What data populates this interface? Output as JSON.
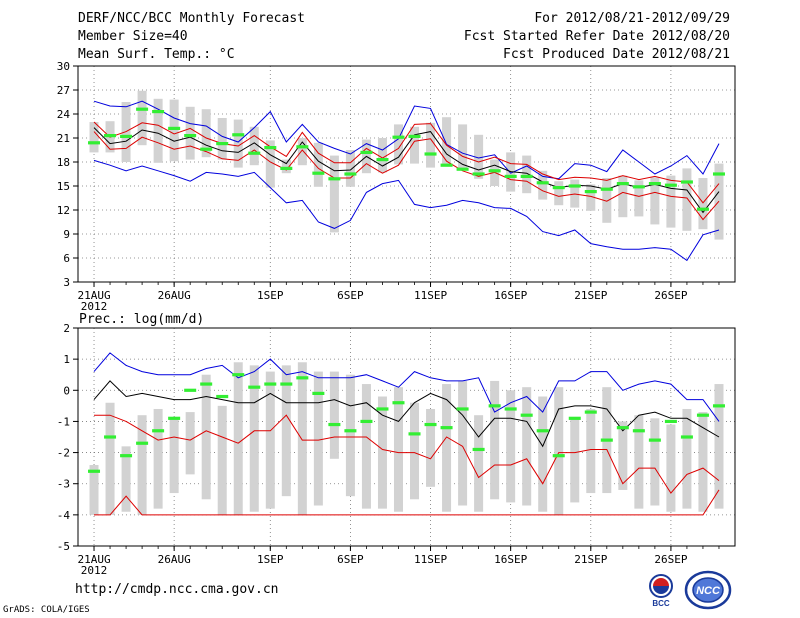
{
  "header": {
    "title": "DERF/NCC/BCC Monthly Forecast",
    "member_size": "Member Size=40",
    "variable": "Mean Surf. Temp.: °C",
    "forecast_period": "For 2012/08/21-2012/09/29",
    "fcst_started": "Fcst Started Refer Date 2012/08/20",
    "fcst_produced": "Fcst Produced Date 2012/08/21"
  },
  "footer": {
    "url": "http://cmdp.ncc.cma.gov.cn",
    "grads": "GrADS: COLA/IGES",
    "logo_left_text": "BCC",
    "logo_right_text": "NCC"
  },
  "colors": {
    "upper_line": "#0000dd",
    "lower_line": "#dd0000",
    "ensemble_mean": "#000000",
    "box": "#d2d2d2",
    "observed_marker": "#33ee33",
    "grid": "#777777"
  },
  "chart_data": [
    {
      "type": "line",
      "panel": "temperature",
      "title": "Mean Surf. Temp.: °C",
      "x_tick_labels": [
        "21AUG",
        "26AUG",
        "1SEP",
        "6SEP",
        "11SEP",
        "16SEP",
        "21SEP",
        "26SEP"
      ],
      "x_tick_days": [
        1,
        6,
        12,
        17,
        22,
        27,
        32,
        37
      ],
      "x_year_label": "2012",
      "n_days": 40,
      "ylim": [
        3,
        30
      ],
      "y_ticks": [
        3,
        6,
        9,
        12,
        15,
        18,
        21,
        24,
        27,
        30
      ],
      "series": [
        {
          "name": "max",
          "color": "blue",
          "values": [
            25.6,
            25,
            24.9,
            25.6,
            24.6,
            23.5,
            22.8,
            22.5,
            21.2,
            20.5,
            22.3,
            24.3,
            20.5,
            22.7,
            20.5,
            19.7,
            19,
            20.3,
            19.5,
            20.9,
            25,
            24.7,
            20.2,
            19.1,
            18.5,
            18.9,
            16.6,
            17.5,
            16.2,
            15.9,
            17.8,
            17.6,
            16.8,
            19.5,
            18,
            16.5,
            17.5,
            18.8,
            16.5,
            20.3
          ]
        },
        {
          "name": "p75",
          "color": "red",
          "values": [
            23,
            21.1,
            21.8,
            22.9,
            22.6,
            21.5,
            22.2,
            21,
            20.3,
            20,
            21.3,
            19.9,
            18.7,
            21.7,
            19.1,
            17.9,
            17.9,
            19.7,
            18.5,
            19.7,
            22.7,
            22.8,
            20.1,
            18.7,
            18,
            18.6,
            17.8,
            17.7,
            16.5,
            15.8,
            16.1,
            16,
            15.7,
            16.3,
            15.8,
            16.2,
            15.7,
            15.5,
            12.9,
            15.3
          ]
        },
        {
          "name": "mean",
          "color": "black",
          "values": [
            22.3,
            20.3,
            20.6,
            22,
            21.6,
            20.6,
            21.1,
            20.1,
            19.4,
            19.2,
            20.4,
            18.9,
            17.8,
            20.5,
            18.1,
            16.9,
            17,
            18.7,
            17.5,
            18.6,
            21.4,
            21.8,
            19,
            17.7,
            17,
            17.6,
            16.8,
            16.6,
            15.5,
            14.8,
            15.1,
            15,
            14.6,
            15.3,
            14.8,
            15.2,
            14.7,
            14.5,
            11.7,
            14.3
          ]
        },
        {
          "name": "p25",
          "color": "red",
          "values": [
            21.8,
            19.6,
            19.7,
            21.1,
            20.4,
            19.6,
            20,
            19.3,
            18.4,
            18.2,
            19.5,
            18,
            17,
            19.5,
            17.2,
            16,
            16,
            17.8,
            16.6,
            17.6,
            20.6,
            20.9,
            18.1,
            16.9,
            16.2,
            16.7,
            15.8,
            15.6,
            14.4,
            13.7,
            14,
            13.7,
            13.1,
            14.2,
            13.7,
            14.2,
            13.7,
            13.5,
            10.8,
            13.1
          ]
        },
        {
          "name": "min",
          "color": "blue",
          "values": [
            18.2,
            17.6,
            16.9,
            17.5,
            16.9,
            16.3,
            15.6,
            16.7,
            16.5,
            16.2,
            16.7,
            14.8,
            12.9,
            13.2,
            10.5,
            9.7,
            10.7,
            14.2,
            15.3,
            15.7,
            12.7,
            12.3,
            12.6,
            13.2,
            12.9,
            12.3,
            12.2,
            11.2,
            9.3,
            8.8,
            9.5,
            7.8,
            7.4,
            7.1,
            7.1,
            7.3,
            7.1,
            5.7,
            8.9,
            9.5
          ]
        },
        {
          "name": "observed",
          "color": "green",
          "values": [
            20.4,
            21.3,
            21.2,
            24.6,
            24.3,
            22.2,
            21.3,
            19.6,
            20.3,
            21.4,
            19.1,
            19.8,
            17.2,
            19.9,
            16.6,
            15.9,
            16.5,
            19.2,
            18.3,
            21.1,
            21.2,
            19,
            17.6,
            17.1,
            16.5,
            16.9,
            16.2,
            16.2,
            15.4,
            14.8,
            15,
            14.3,
            14.6,
            15.3,
            14.9,
            15.3,
            15.1,
            15.5,
            12.1,
            16.5
          ]
        }
      ],
      "boxes": [
        {
          "name": "box_top",
          "values": [
            23,
            23.1,
            25.5,
            26.9,
            25.9,
            25.8,
            24.9,
            24.6,
            23.5,
            23.3,
            22.4,
            20.7,
            18.3,
            21,
            20.4,
            18.8,
            19.5,
            20.8,
            21,
            22.7,
            22.4,
            22.9,
            23.6,
            22.7,
            21.4,
            18.3,
            19.2,
            18.8,
            16.9,
            15.6,
            15.8,
            15.2,
            16,
            16.3,
            15.7,
            16.1,
            16.3,
            17.2,
            16,
            17.8
          ]
        },
        {
          "name": "box_bottom",
          "values": [
            19.2,
            19.2,
            18,
            20.1,
            17.9,
            18.1,
            18.3,
            18.6,
            18.3,
            17.3,
            17.6,
            14.8,
            16.6,
            17.6,
            14.9,
            9.2,
            14.9,
            16.6,
            16.7,
            17.7,
            17.8,
            17.3,
            17.6,
            17.1,
            15.9,
            15,
            14.3,
            14.1,
            13.3,
            12.6,
            12.3,
            11.9,
            10.4,
            11.1,
            11.2,
            10.2,
            9.8,
            9.4,
            9.6,
            8.3
          ]
        }
      ]
    },
    {
      "type": "line",
      "panel": "precipitation",
      "title": "Prec.: log(mm/d)",
      "x_tick_labels": [
        "21AUG",
        "26AUG",
        "1SEP",
        "6SEP",
        "11SEP",
        "16SEP",
        "21SEP",
        "26SEP"
      ],
      "x_tick_days": [
        1,
        6,
        12,
        17,
        22,
        27,
        32,
        37
      ],
      "x_year_label": "2012",
      "n_days": 40,
      "ylim": [
        -5,
        2
      ],
      "y_ticks": [
        -5,
        -4,
        -3,
        -2,
        -1,
        0,
        1,
        2
      ],
      "series": [
        {
          "name": "max",
          "color": "blue",
          "values": [
            0.6,
            1.2,
            0.8,
            0.6,
            0.5,
            0.5,
            0.5,
            0.7,
            0.8,
            0.4,
            0.6,
            1,
            0.5,
            0.6,
            0.4,
            0.4,
            0.4,
            0.5,
            0.3,
            0.1,
            0.6,
            0.4,
            0.3,
            0.3,
            0.4,
            -0.7,
            -0.4,
            -0.2,
            -0.7,
            0.3,
            0.3,
            0.6,
            0.6,
            0,
            0.2,
            0.3,
            0.2,
            -0.3,
            -0.3,
            -1
          ]
        },
        {
          "name": "mean",
          "color": "black",
          "values": [
            -0.3,
            0.3,
            -0.2,
            -0.1,
            -0.2,
            -0.3,
            -0.3,
            -0.2,
            -0.3,
            -0.4,
            -0.4,
            -0.1,
            -0.4,
            -0.4,
            -0.4,
            -0.3,
            -0.5,
            -0.4,
            -0.8,
            -1,
            -0.4,
            -0.1,
            -0.3,
            -0.8,
            -1.5,
            -0.9,
            -0.9,
            -1,
            -1.8,
            -0.6,
            -0.5,
            -0.5,
            -0.6,
            -1.3,
            -0.8,
            -0.7,
            -0.9,
            -0.9,
            -1.2,
            -1.5
          ]
        },
        {
          "name": "lower",
          "color": "red",
          "values": [
            -0.8,
            -0.8,
            -1,
            -1.3,
            -1.6,
            -1.5,
            -1.6,
            -1.3,
            -1.5,
            -1.7,
            -1.3,
            -1.3,
            -0.8,
            -1.6,
            -1.6,
            -1.5,
            -1.5,
            -1.5,
            -1.9,
            -2,
            -2,
            -2.2,
            -1.5,
            -1.8,
            -2.8,
            -2.4,
            -2.4,
            -2.2,
            -3,
            -2,
            -2,
            -1.9,
            -1.9,
            -3,
            -2.5,
            -2.5,
            -3.3,
            -2.7,
            -2.5,
            -2.9
          ]
        },
        {
          "name": "lower_min",
          "color": "red",
          "values": [
            -4,
            -4,
            -3.4,
            -4,
            -4,
            -4,
            -4,
            -4,
            -4,
            -4,
            -4,
            -4,
            -4,
            -4,
            -4,
            -4,
            -4,
            -4,
            -4,
            -4,
            -4,
            -4,
            -4,
            -4,
            -4,
            -4,
            -4,
            -4,
            -4,
            -4,
            -4,
            -4,
            -4,
            -4,
            -4,
            -4,
            -4,
            -4,
            -4,
            -3.2
          ]
        },
        {
          "name": "observed",
          "color": "green",
          "values": [
            -2.6,
            -1.5,
            -2.1,
            -1.7,
            -1.3,
            -0.9,
            0,
            0.2,
            -0.2,
            0.5,
            0.1,
            0.2,
            0.2,
            0.4,
            -0.1,
            -1.1,
            -1.3,
            -1,
            -0.6,
            -0.4,
            -1.4,
            -1.1,
            -1.2,
            -0.6,
            -1.9,
            -0.5,
            -0.6,
            -0.8,
            -1.3,
            -2.1,
            -0.9,
            -0.7,
            -1.6,
            -1.2,
            -1.3,
            -1.6,
            -1,
            -1.5,
            -0.8,
            -0.5
          ]
        }
      ],
      "boxes": [
        {
          "name": "box_top",
          "values": [
            -2.4,
            -0.4,
            -1.8,
            -0.8,
            -0.6,
            -0.9,
            -0.7,
            0.5,
            -0.5,
            0.9,
            0.8,
            0.6,
            0.8,
            0.9,
            0.6,
            0.6,
            0.5,
            0.2,
            -0.2,
            0.1,
            -0.4,
            -0.6,
            0.2,
            0.3,
            -0.8,
            0.3,
            0,
            0.1,
            -0.2,
            0.1,
            -0.9,
            -0.6,
            0.1,
            -1,
            -0.8,
            -0.9,
            -1.1,
            -0.6,
            -0.7,
            0.2
          ]
        },
        {
          "name": "box_bottom",
          "values": [
            -4,
            -4,
            -3.9,
            -4,
            -3.8,
            -3.3,
            -2.7,
            -3.5,
            -4,
            -4,
            -3.9,
            -3.8,
            -3.4,
            -4,
            -3.7,
            -2.2,
            -3.4,
            -3.8,
            -3.8,
            -3.9,
            -3.5,
            -3.1,
            -3.9,
            -3.7,
            -3.9,
            -3.5,
            -3.6,
            -3.7,
            -3.9,
            -4,
            -3.6,
            -3.3,
            -3.3,
            -3.2,
            -3.8,
            -3.7,
            -3.9,
            -3.8,
            -3.9,
            -3.8
          ]
        }
      ]
    }
  ]
}
